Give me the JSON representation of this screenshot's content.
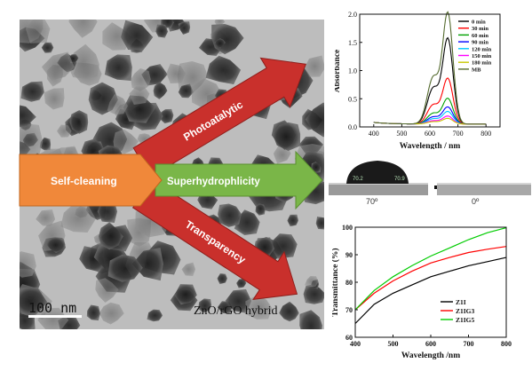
{
  "tem": {
    "scale_label": "100 nm",
    "caption": "ZnO/rGO hybrid"
  },
  "arrows": {
    "main": "Self-cleaning",
    "up": "Photoatalytic",
    "middle": "Superhydrophlicity",
    "down": "Transparency"
  },
  "colors": {
    "main_arrow": "#f0883a",
    "red_arrow": "#c9302c",
    "green_arrow": "#7ab648"
  },
  "contact_angle": {
    "left_label": "70º",
    "right_label": "0º",
    "left_values": [
      "70.2",
      "70.9"
    ]
  },
  "chart_data": [
    {
      "type": "line",
      "xlabel": "Wavelength / nm",
      "ylabel": "Absorbance",
      "xlim": [
        350,
        850
      ],
      "ylim": [
        0,
        2.0
      ],
      "xticks": [
        400,
        500,
        600,
        700,
        800
      ],
      "yticks": [
        0.0,
        0.5,
        1.0,
        1.5,
        2.0
      ],
      "legend_position": "top-right",
      "peak_x": 664,
      "series": [
        {
          "name": "0 min",
          "color": "#000000",
          "peak": 1.5
        },
        {
          "name": "30 min",
          "color": "#ff0000",
          "peak": 0.8
        },
        {
          "name": "60 min",
          "color": "#00a000",
          "peak": 0.45
        },
        {
          "name": "90 min",
          "color": "#0000ff",
          "peak": 0.3
        },
        {
          "name": "120 min",
          "color": "#00c8ff",
          "peak": 0.22
        },
        {
          "name": "150 min",
          "color": "#ff00ff",
          "peak": 0.14
        },
        {
          "name": "180 min",
          "color": "#c8c800",
          "peak": 0.1
        },
        {
          "name": "MB",
          "color": "#556b2f",
          "peak": 1.95
        }
      ]
    },
    {
      "type": "line",
      "xlabel": "Wavelength /nm",
      "ylabel": "Transmittance (%)",
      "xlim": [
        400,
        800
      ],
      "ylim": [
        60,
        100
      ],
      "xticks": [
        400,
        500,
        600,
        700,
        800
      ],
      "yticks": [
        60,
        70,
        80,
        90,
        100
      ],
      "legend_position": "bottom-right",
      "series": [
        {
          "name": "Z1I",
          "color": "#000000",
          "x": [
            400,
            450,
            500,
            550,
            600,
            650,
            700,
            750,
            800
          ],
          "y": [
            65,
            72,
            76,
            79,
            82,
            84,
            86,
            87.5,
            89
          ]
        },
        {
          "name": "Z1IG3",
          "color": "#ff0000",
          "x": [
            400,
            450,
            500,
            550,
            600,
            650,
            700,
            750,
            800
          ],
          "y": [
            70,
            76,
            80.5,
            84,
            87,
            89,
            90.8,
            92,
            93
          ]
        },
        {
          "name": "Z1IG5",
          "color": "#00cc00",
          "x": [
            400,
            450,
            500,
            550,
            600,
            650,
            700,
            750,
            800
          ],
          "y": [
            70,
            77,
            82,
            86,
            89.5,
            92.5,
            95.5,
            98,
            99.8
          ]
        }
      ]
    }
  ]
}
